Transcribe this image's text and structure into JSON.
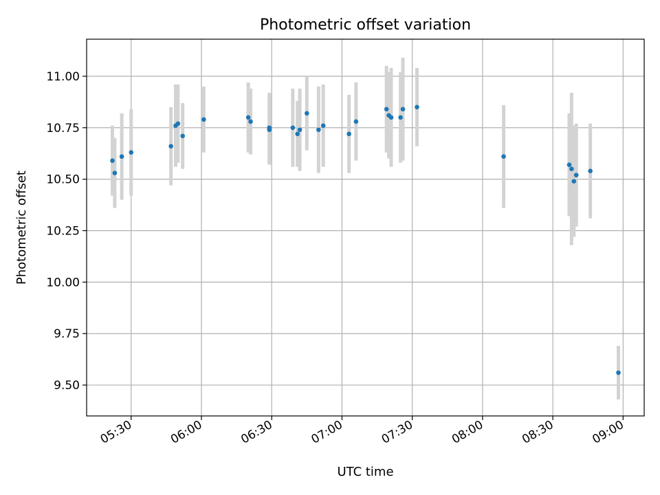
{
  "chart_data": {
    "type": "scatter",
    "title": "Photometric offset variation",
    "xlabel": "UTC time",
    "ylabel": "Photometric offset",
    "xlim": [
      "05:11",
      "09:09"
    ],
    "ylim": [
      9.35,
      11.18
    ],
    "xticks": [
      "05:30",
      "06:00",
      "06:30",
      "07:00",
      "07:30",
      "08:00",
      "08:30",
      "09:00"
    ],
    "yticks": [
      "9.50",
      "9.75",
      "10.00",
      "10.25",
      "10.50",
      "10.75",
      "11.00"
    ],
    "grid": true,
    "colors": {
      "point": "#1f77b4",
      "errorbar": "#d3d3d3",
      "grid": "#b0b0b0"
    },
    "series": [
      {
        "points": [
          {
            "x": "05:22",
            "y": 10.59,
            "err": 0.17
          },
          {
            "x": "05:23",
            "y": 10.53,
            "err": 0.17
          },
          {
            "x": "05:26",
            "y": 10.61,
            "err": 0.21
          },
          {
            "x": "05:30",
            "y": 10.63,
            "err": 0.21
          },
          {
            "x": "05:47",
            "y": 10.66,
            "err": 0.19
          },
          {
            "x": "05:49",
            "y": 10.76,
            "err": 0.2
          },
          {
            "x": "05:50",
            "y": 10.77,
            "err": 0.19
          },
          {
            "x": "05:52",
            "y": 10.71,
            "err": 0.16
          },
          {
            "x": "06:01",
            "y": 10.79,
            "err": 0.16
          },
          {
            "x": "06:20",
            "y": 10.8,
            "err": 0.17
          },
          {
            "x": "06:21",
            "y": 10.78,
            "err": 0.16
          },
          {
            "x": "06:29",
            "y": 10.75,
            "err": 0.17
          },
          {
            "x": "06:29",
            "y": 10.74,
            "err": 0.17
          },
          {
            "x": "06:39",
            "y": 10.75,
            "err": 0.19
          },
          {
            "x": "06:41",
            "y": 10.72,
            "err": 0.16
          },
          {
            "x": "06:42",
            "y": 10.74,
            "err": 0.2
          },
          {
            "x": "06:45",
            "y": 10.82,
            "err": 0.18
          },
          {
            "x": "06:50",
            "y": 10.74,
            "err": 0.21
          },
          {
            "x": "06:52",
            "y": 10.76,
            "err": 0.2
          },
          {
            "x": "07:03",
            "y": 10.72,
            "err": 0.19
          },
          {
            "x": "07:06",
            "y": 10.78,
            "err": 0.19
          },
          {
            "x": "07:19",
            "y": 10.84,
            "err": 0.21
          },
          {
            "x": "07:20",
            "y": 10.81,
            "err": 0.21
          },
          {
            "x": "07:21",
            "y": 10.8,
            "err": 0.24
          },
          {
            "x": "07:25",
            "y": 10.8,
            "err": 0.22
          },
          {
            "x": "07:26",
            "y": 10.84,
            "err": 0.25
          },
          {
            "x": "07:32",
            "y": 10.85,
            "err": 0.19
          },
          {
            "x": "08:09",
            "y": 10.61,
            "err": 0.25
          },
          {
            "x": "08:37",
            "y": 10.57,
            "err": 0.25
          },
          {
            "x": "08:38",
            "y": 10.55,
            "err": 0.37
          },
          {
            "x": "08:39",
            "y": 10.49,
            "err": 0.27
          },
          {
            "x": "08:40",
            "y": 10.52,
            "err": 0.25
          },
          {
            "x": "08:46",
            "y": 10.54,
            "err": 0.23
          },
          {
            "x": "08:58",
            "y": 9.56,
            "err": 0.13
          }
        ]
      }
    ]
  }
}
